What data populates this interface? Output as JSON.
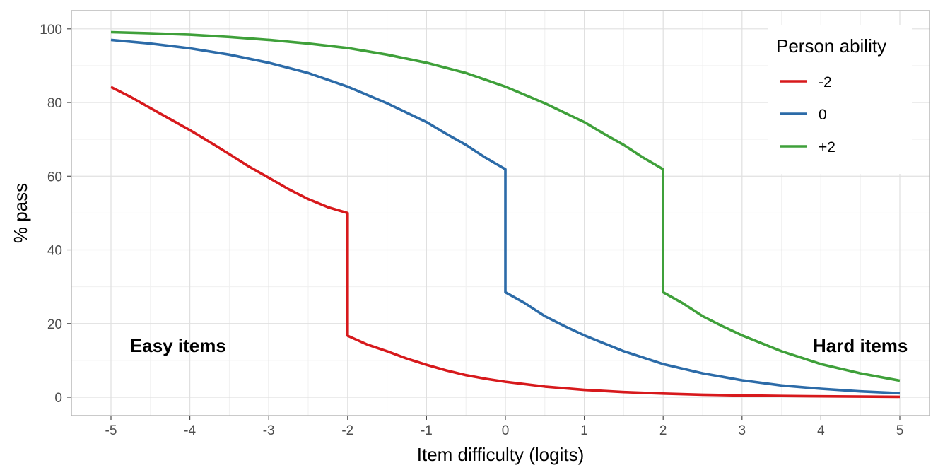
{
  "chart_data": {
    "type": "line",
    "xlabel": "Item difficulty (logits)",
    "ylabel": "% pass",
    "xlim": [
      -5.5,
      5.4
    ],
    "ylim": [
      -5,
      105
    ],
    "x_ticks": [
      -5,
      -4,
      -3,
      -2,
      -1,
      0,
      1,
      2,
      3,
      4,
      5
    ],
    "x_tick_labels": [
      "-5",
      "-4",
      "-3",
      "-2",
      "-1",
      "0",
      "1",
      "2",
      "3",
      "4",
      "5"
    ],
    "y_ticks": [
      0,
      20,
      40,
      60,
      80,
      100
    ],
    "y_tick_labels": [
      "0",
      "20",
      "40",
      "60",
      "80",
      "100"
    ],
    "grid": true,
    "legend": {
      "title": "Person ability",
      "position": "top-right"
    },
    "series": [
      {
        "name": "-2",
        "color": "#d7191c",
        "points": [
          [
            -5,
            84.2
          ],
          [
            -4.75,
            81.5
          ],
          [
            -4.5,
            78.5
          ],
          [
            -4.25,
            75.5
          ],
          [
            -4,
            72.5
          ],
          [
            -3.75,
            69.3
          ],
          [
            -3.5,
            66.0
          ],
          [
            -3.25,
            62.6
          ],
          [
            -3,
            59.6
          ],
          [
            -2.75,
            56.5
          ],
          [
            -2.5,
            53.8
          ],
          [
            -2.25,
            51.6
          ],
          [
            -2,
            50.0
          ],
          [
            -2,
            16.7
          ],
          [
            -1.75,
            14.3
          ],
          [
            -1.5,
            12.5
          ],
          [
            -1.25,
            10.5
          ],
          [
            -1,
            8.8
          ],
          [
            -0.75,
            7.3
          ],
          [
            -0.5,
            6.0
          ],
          [
            -0.25,
            5.0
          ],
          [
            0,
            4.2
          ],
          [
            0.5,
            2.9
          ],
          [
            1,
            2.0
          ],
          [
            1.5,
            1.4
          ],
          [
            2,
            1.0
          ],
          [
            2.5,
            0.7
          ],
          [
            3,
            0.5
          ],
          [
            3.5,
            0.35
          ],
          [
            4,
            0.25
          ],
          [
            4.5,
            0.18
          ],
          [
            5,
            0.12
          ]
        ]
      },
      {
        "name": "0",
        "color": "#2c6ba8",
        "points": [
          [
            -5,
            97.0
          ],
          [
            -4.5,
            96.0
          ],
          [
            -4,
            94.7
          ],
          [
            -3.5,
            93.0
          ],
          [
            -3,
            90.8
          ],
          [
            -2.5,
            88.0
          ],
          [
            -2,
            84.3
          ],
          [
            -1.5,
            79.8
          ],
          [
            -1,
            74.7
          ],
          [
            -0.75,
            71.5
          ],
          [
            -0.5,
            68.5
          ],
          [
            -0.25,
            65.0
          ],
          [
            0,
            61.9
          ],
          [
            0,
            28.5
          ],
          [
            0.25,
            25.5
          ],
          [
            0.5,
            22.0
          ],
          [
            0.75,
            19.3
          ],
          [
            1,
            16.8
          ],
          [
            1.5,
            12.5
          ],
          [
            2,
            9.0
          ],
          [
            2.5,
            6.5
          ],
          [
            3,
            4.6
          ],
          [
            3.5,
            3.2
          ],
          [
            4,
            2.3
          ],
          [
            4.5,
            1.6
          ],
          [
            5,
            1.1
          ]
        ]
      },
      {
        "name": "+2",
        "color": "#3fa03a",
        "points": [
          [
            -5,
            99.1
          ],
          [
            -4.5,
            98.8
          ],
          [
            -4,
            98.4
          ],
          [
            -3.5,
            97.8
          ],
          [
            -3,
            97.0
          ],
          [
            -2.5,
            96.0
          ],
          [
            -2,
            94.8
          ],
          [
            -1.5,
            93.0
          ],
          [
            -1,
            90.8
          ],
          [
            -0.5,
            88.0
          ],
          [
            0,
            84.3
          ],
          [
            0.5,
            79.8
          ],
          [
            1,
            74.7
          ],
          [
            1.25,
            71.5
          ],
          [
            1.5,
            68.5
          ],
          [
            1.75,
            65.0
          ],
          [
            2,
            61.9
          ],
          [
            2,
            28.5
          ],
          [
            2.25,
            25.5
          ],
          [
            2.5,
            22.0
          ],
          [
            2.75,
            19.3
          ],
          [
            3,
            16.8
          ],
          [
            3.5,
            12.5
          ],
          [
            4,
            9.0
          ],
          [
            4.5,
            6.5
          ],
          [
            5,
            4.5
          ]
        ]
      }
    ],
    "annotations": [
      {
        "text": "Easy items",
        "x": -4.15,
        "y": 14
      },
      {
        "text": "Hard items",
        "x": 4.5,
        "y": 14
      }
    ]
  }
}
